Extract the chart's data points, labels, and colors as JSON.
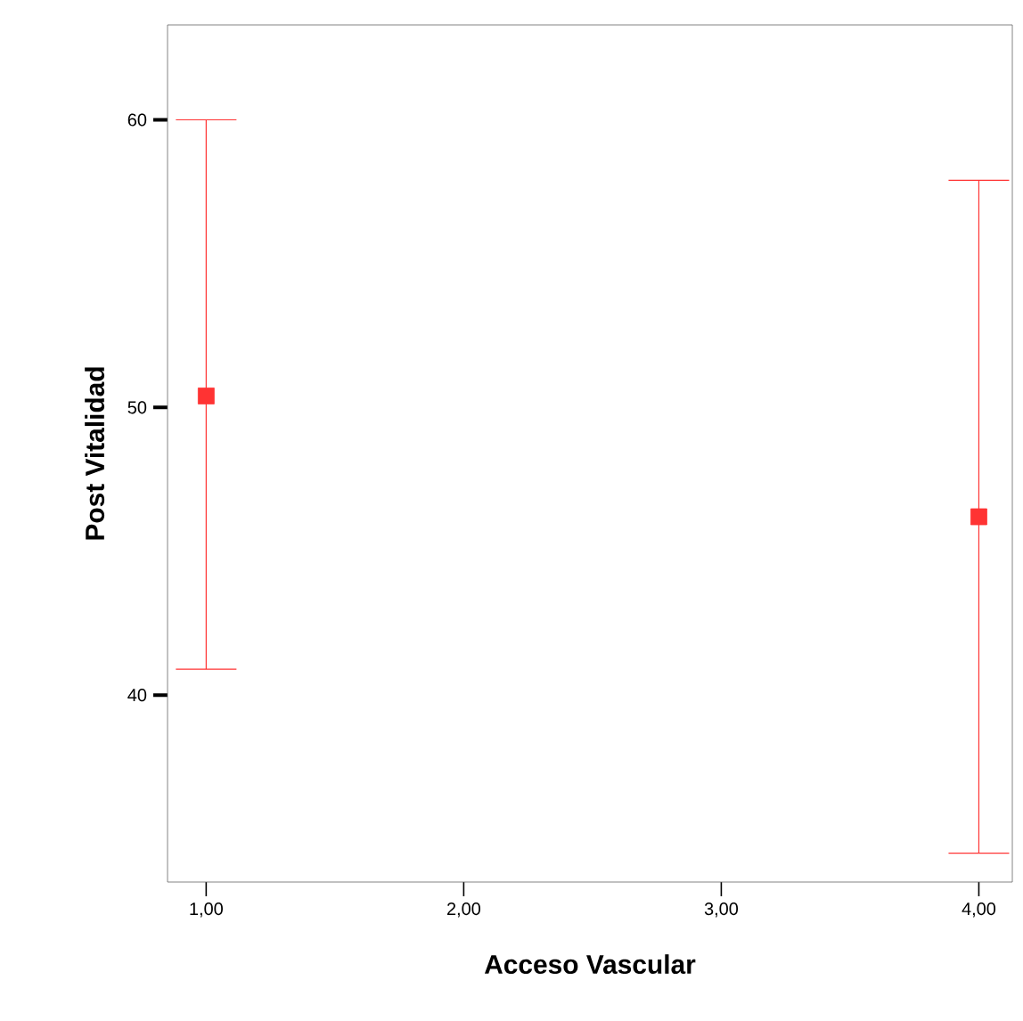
{
  "chart_data": {
    "type": "scatter",
    "xlabel": "Acceso Vascular",
    "ylabel": "Post Vitalidad",
    "x": [
      1,
      4
    ],
    "values": [
      50.4,
      46.2
    ],
    "errors": [
      [
        40.9,
        60.0
      ],
      [
        34.5,
        57.9
      ]
    ],
    "color": "#ff3333",
    "marker": "square",
    "grid": false,
    "xlim": [
      0.85,
      4.13
    ],
    "ylim": [
      33.5,
      63.3
    ],
    "xticks": [
      {
        "value": 1,
        "label": "1,00"
      },
      {
        "value": 2,
        "label": "2,00"
      },
      {
        "value": 3,
        "label": "3,00"
      },
      {
        "value": 4,
        "label": "4,00"
      }
    ],
    "yticks": [
      40,
      50,
      60
    ]
  }
}
